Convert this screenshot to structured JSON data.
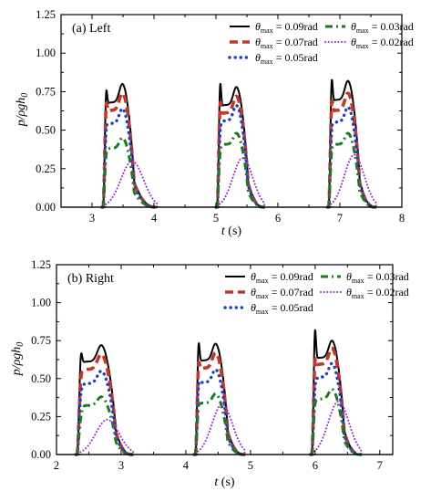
{
  "chart_data": [
    {
      "type": "line",
      "panel_label": "(a) Left",
      "xlabel": "t (s)",
      "ylabel": "p/ρgh0",
      "xlim": [
        2.5,
        8
      ],
      "ylim": [
        0,
        1.25
      ],
      "xticks": [
        3,
        4,
        5,
        6,
        7,
        8
      ],
      "yticks": [
        0.0,
        0.25,
        0.5,
        0.75,
        1.0,
        1.25
      ],
      "ytick_labels": [
        "0.00",
        "0.25",
        "0.50",
        "0.75",
        "1.00",
        "1.25"
      ],
      "legend_position": "top-right",
      "impacts": [
        {
          "start": 3.18,
          "end": 3.68,
          "tail": 0.35
        },
        {
          "start": 5.02,
          "end": 5.52,
          "tail": 0.25
        },
        {
          "start": 6.82,
          "end": 7.32,
          "tail": 0.25
        }
      ],
      "series": [
        {
          "name": "θmax = 0.09rad",
          "theta": "0.09rad",
          "style": "solid",
          "color": "#000000",
          "peaks": [
            [
              0.95,
              0.8
            ],
            [
              1.02,
              0.78
            ],
            [
              1.05,
              0.82
            ]
          ]
        },
        {
          "name": "θmax = 0.07rad",
          "theta": "0.07rad",
          "style": "longdash",
          "color": "#c0392b",
          "peaks": [
            [
              0.84,
              0.74
            ],
            [
              0.85,
              0.72
            ],
            [
              0.86,
              0.74
            ]
          ]
        },
        {
          "name": "θmax = 0.05rad",
          "theta": "0.05rad",
          "style": "dot",
          "color": "#1f3fbf",
          "peaks": [
            [
              0.63,
              0.64
            ],
            [
              0.61,
              0.66
            ],
            [
              0.63,
              0.65
            ]
          ]
        },
        {
          "name": "θmax = 0.03rad",
          "theta": "0.03rad",
          "style": "dashdot",
          "color": "#1e7a1e",
          "peaks": [
            [
              0.42,
              0.45
            ],
            [
              0.44,
              0.48
            ],
            [
              0.45,
              0.48
            ]
          ]
        },
        {
          "name": "θmax = 0.02rad",
          "theta": "0.02rad",
          "style": "finedot",
          "color": "#9b30c8",
          "peaks": [
            [
              0.12,
              0.3
            ],
            [
              0.15,
              0.32
            ],
            [
              0.16,
              0.34
            ]
          ]
        }
      ]
    },
    {
      "type": "line",
      "panel_label": "(b) Right",
      "xlabel": "t (s)",
      "ylabel": "p/ρgh0",
      "xlim": [
        2,
        7.2
      ],
      "ylim": [
        0,
        1.25
      ],
      "xticks": [
        2,
        3,
        4,
        5,
        6,
        7
      ],
      "yticks": [
        0.0,
        0.25,
        0.5,
        0.75,
        1.0,
        1.25
      ],
      "ytick_labels": [
        "0.00",
        "0.25",
        "0.50",
        "0.75",
        "1.00",
        "1.25"
      ],
      "legend_position": "top-right",
      "impacts": [
        {
          "start": 2.32,
          "end": 2.92,
          "tail": 0.25
        },
        {
          "start": 4.15,
          "end": 4.65,
          "tail": 0.25
        },
        {
          "start": 5.95,
          "end": 6.45,
          "tail": 0.25
        }
      ],
      "series": [
        {
          "name": "θmax = 0.09rad",
          "theta": "0.09rad",
          "style": "solid",
          "color": "#000000",
          "peaks": [
            [
              0.83,
              0.72
            ],
            [
              0.93,
              0.73
            ],
            [
              1.05,
              0.75
            ]
          ]
        },
        {
          "name": "θmax = 0.07rad",
          "theta": "0.07rad",
          "style": "longdash",
          "color": "#c0392b",
          "peaks": [
            [
              0.63,
              0.66
            ],
            [
              0.75,
              0.67
            ],
            [
              0.78,
              0.7
            ]
          ]
        },
        {
          "name": "θmax = 0.05rad",
          "theta": "0.05rad",
          "style": "dot",
          "color": "#1f3fbf",
          "peaks": [
            [
              0.5,
              0.55
            ],
            [
              0.58,
              0.56
            ],
            [
              0.55,
              0.6
            ]
          ]
        },
        {
          "name": "θmax = 0.03rad",
          "theta": "0.03rad",
          "style": "dashdot",
          "color": "#1e7a1e",
          "peaks": [
            [
              0.3,
              0.38
            ],
            [
              0.4,
              0.4
            ],
            [
              0.41,
              0.43
            ]
          ]
        },
        {
          "name": "θmax = 0.02rad",
          "theta": "0.02rad",
          "style": "finedot",
          "color": "#9b30c8",
          "peaks": [
            [
              0.12,
              0.23
            ],
            [
              0.17,
              0.33
            ],
            [
              0.18,
              0.35
            ]
          ]
        }
      ]
    }
  ]
}
